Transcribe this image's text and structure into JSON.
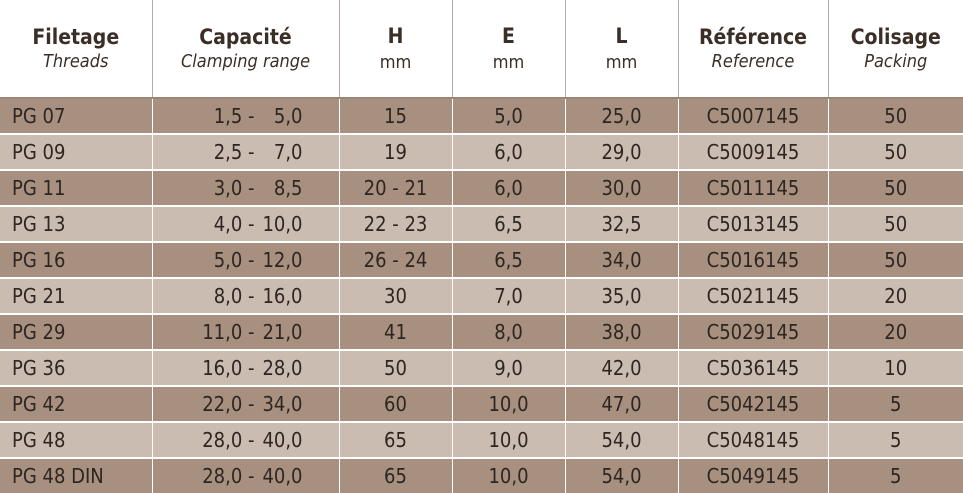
{
  "headers": [
    {
      "main": "Filetage",
      "sub": "Threads"
    },
    {
      "main": "Capacité",
      "sub": "Clamping range"
    },
    {
      "main": "H",
      "unit": "mm"
    },
    {
      "main": "E",
      "unit": "mm"
    },
    {
      "main": "L",
      "unit": "mm"
    },
    {
      "main": "Référence",
      "sub": "Reference"
    },
    {
      "main": "Colisage",
      "sub": "Packing"
    }
  ],
  "rows": [
    {
      "thread": "PG 07",
      "cap_from": "1,5 -",
      "cap_to": "5,0",
      "h": "15",
      "e": "5,0",
      "l": "25,0",
      "ref": "C5007145",
      "pack": "50"
    },
    {
      "thread": "PG 09",
      "cap_from": "2,5 -",
      "cap_to": "7,0",
      "h": "19",
      "e": "6,0",
      "l": "29,0",
      "ref": "C5009145",
      "pack": "50"
    },
    {
      "thread": "PG 11",
      "cap_from": "3,0 -",
      "cap_to": "8,5",
      "h": "20 - 21",
      "e": "6,0",
      "l": "30,0",
      "ref": "C5011145",
      "pack": "50"
    },
    {
      "thread": "PG 13",
      "cap_from": "4,0 -",
      "cap_to": "10,0",
      "h": "22 - 23",
      "e": "6,5",
      "l": "32,5",
      "ref": "C5013145",
      "pack": "50"
    },
    {
      "thread": "PG 16",
      "cap_from": "5,0 -",
      "cap_to": "12,0",
      "h": "26 - 24",
      "e": "6,5",
      "l": "34,0",
      "ref": "C5016145",
      "pack": "50"
    },
    {
      "thread": "PG 21",
      "cap_from": "8,0 -",
      "cap_to": "16,0",
      "h": "30",
      "e": "7,0",
      "l": "35,0",
      "ref": "C5021145",
      "pack": "20"
    },
    {
      "thread": "PG 29",
      "cap_from": "11,0 -",
      "cap_to": "21,0",
      "h": "41",
      "e": "8,0",
      "l": "38,0",
      "ref": "C5029145",
      "pack": "20"
    },
    {
      "thread": "PG 36",
      "cap_from": "16,0 -",
      "cap_to": "28,0",
      "h": "50",
      "e": "9,0",
      "l": "42,0",
      "ref": "C5036145",
      "pack": "10"
    },
    {
      "thread": "PG 42",
      "cap_from": "22,0 -",
      "cap_to": "34,0",
      "h": "60",
      "e": "10,0",
      "l": "47,0",
      "ref": "C5042145",
      "pack": "5"
    },
    {
      "thread": "PG 48",
      "cap_from": "28,0 -",
      "cap_to": "40,0",
      "h": "65",
      "e": "10,0",
      "l": "54,0",
      "ref": "C5048145",
      "pack": "5"
    },
    {
      "thread": "PG 48 DIN",
      "cap_from": "28,0 -",
      "cap_to": "40,0",
      "h": "65",
      "e": "10,0",
      "l": "54,0",
      "ref": "C5049145",
      "pack": "5"
    }
  ],
  "colors": {
    "row_dark": "#a7907f",
    "row_light": "#cbbcb1",
    "text": "#2e2520"
  }
}
